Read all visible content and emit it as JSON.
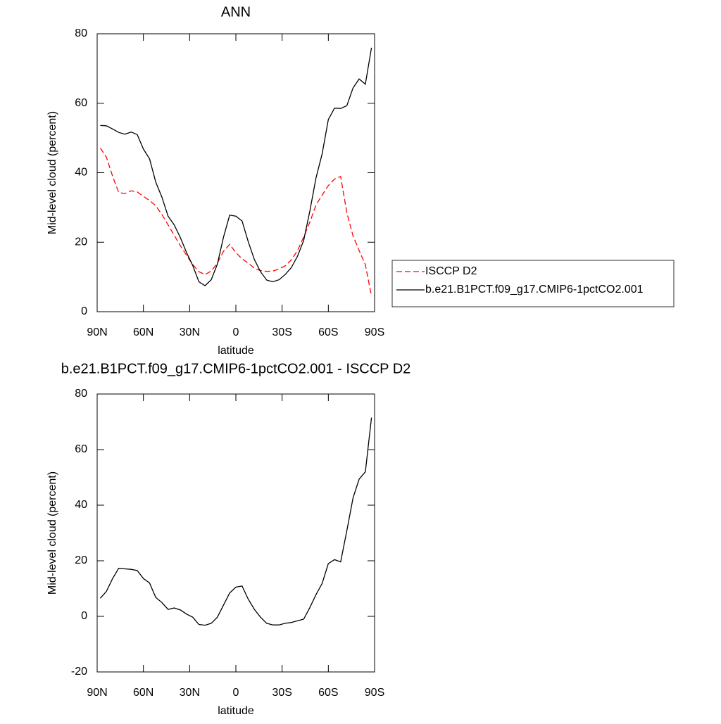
{
  "chart_data": [
    {
      "type": "line",
      "title": "ANN",
      "xlabel": "latitude",
      "ylabel": "Mid-level cloud (percent)",
      "x": [
        88,
        84,
        80,
        76,
        72,
        68,
        64,
        60,
        56,
        52,
        48,
        44,
        40,
        36,
        32,
        28,
        24,
        20,
        16,
        12,
        8,
        4,
        0,
        -4,
        -8,
        -12,
        -16,
        -20,
        -24,
        -28,
        -32,
        -36,
        -40,
        -44,
        -48,
        -52,
        -56,
        -60,
        -64,
        -68,
        -72,
        -76,
        -80,
        -84,
        -88
      ],
      "xlim": [
        90,
        -90
      ],
      "xticks": [
        {
          "value": 90,
          "label": "90N"
        },
        {
          "value": 60,
          "label": "60N"
        },
        {
          "value": 30,
          "label": "30N"
        },
        0,
        {
          "value": -30,
          "label": "30S"
        },
        {
          "value": -60,
          "label": "60S"
        },
        {
          "value": -90,
          "label": "90S"
        }
      ],
      "ylim": [
        0,
        80
      ],
      "yticks": [
        0,
        20,
        40,
        60,
        80
      ],
      "legend": "right",
      "series": [
        {
          "name": "ISCCP D2",
          "color": "#ff0000",
          "linestyle": "dashed",
          "values": [
            47.1,
            44.5,
            39,
            34.3,
            34,
            34.8,
            34.5,
            33.2,
            32,
            30.5,
            28,
            25,
            22,
            19,
            16.2,
            13.6,
            11.5,
            10.7,
            11.7,
            14,
            17.4,
            19.4,
            17,
            15.2,
            14,
            12.5,
            11.8,
            11.6,
            11.7,
            12.3,
            13.2,
            14.9,
            17.6,
            21.5,
            25.8,
            30.7,
            33.6,
            36.3,
            38.2,
            38.9,
            28.5,
            21.8,
            17.6,
            13.5,
            4.5
          ]
        },
        {
          "name": "b.e21.B1PCT.f09_g17.CMIP6-1pctCO2.001",
          "color": "#000000",
          "linestyle": "solid",
          "values": [
            53.6,
            53.5,
            52.6,
            51.6,
            51.1,
            51.7,
            51,
            46.8,
            44,
            37.3,
            33,
            27.5,
            25,
            21.3,
            17,
            13.3,
            8.6,
            7.5,
            9.2,
            13.7,
            21.5,
            27.8,
            27.5,
            26.1,
            20.2,
            15,
            11.5,
            9.1,
            8.6,
            9.2,
            10.7,
            12.7,
            16,
            20.5,
            29,
            38.5,
            45.5,
            55.3,
            58.6,
            58.5,
            59.3,
            64.4,
            67,
            65.5,
            76
          ]
        }
      ]
    },
    {
      "type": "line",
      "title": "b.e21.B1PCT.f09_g17.CMIP6-1pctCO2.001 - ISCCP D2",
      "xlabel": "latitude",
      "ylabel": "Mid-level cloud (percent)",
      "x": [
        88,
        84,
        80,
        76,
        72,
        68,
        64,
        60,
        56,
        52,
        48,
        44,
        40,
        36,
        32,
        28,
        24,
        20,
        16,
        12,
        8,
        4,
        0,
        -4,
        -8,
        -12,
        -16,
        -20,
        -24,
        -28,
        -32,
        -36,
        -40,
        -44,
        -48,
        -52,
        -56,
        -60,
        -64,
        -68,
        -72,
        -76,
        -80,
        -84,
        -88
      ],
      "xlim": [
        90,
        -90
      ],
      "xticks": [
        {
          "value": 90,
          "label": "90N"
        },
        {
          "value": 60,
          "label": "60N"
        },
        {
          "value": 30,
          "label": "30N"
        },
        0,
        {
          "value": -30,
          "label": "30S"
        },
        {
          "value": -60,
          "label": "60S"
        },
        {
          "value": -90,
          "label": "90S"
        }
      ],
      "ylim": [
        -20,
        80
      ],
      "yticks": [
        -20,
        0,
        20,
        40,
        60,
        80
      ],
      "series": [
        {
          "color": "#000000",
          "linestyle": "solid",
          "values": [
            6.5,
            9,
            13.6,
            17.3,
            17.1,
            16.9,
            16.5,
            13.6,
            12,
            6.8,
            5,
            2.5,
            3,
            2.3,
            0.8,
            -0.3,
            -2.9,
            -3.2,
            -2.5,
            -0.3,
            4.1,
            8.4,
            10.5,
            10.9,
            6.2,
            2.5,
            -0.3,
            -2.5,
            -3.1,
            -3.1,
            -2.5,
            -2.2,
            -1.6,
            -1,
            3.2,
            7.8,
            11.9,
            19,
            20.4,
            19.6,
            30.8,
            42.6,
            49.4,
            52,
            71.5
          ]
        }
      ]
    }
  ]
}
